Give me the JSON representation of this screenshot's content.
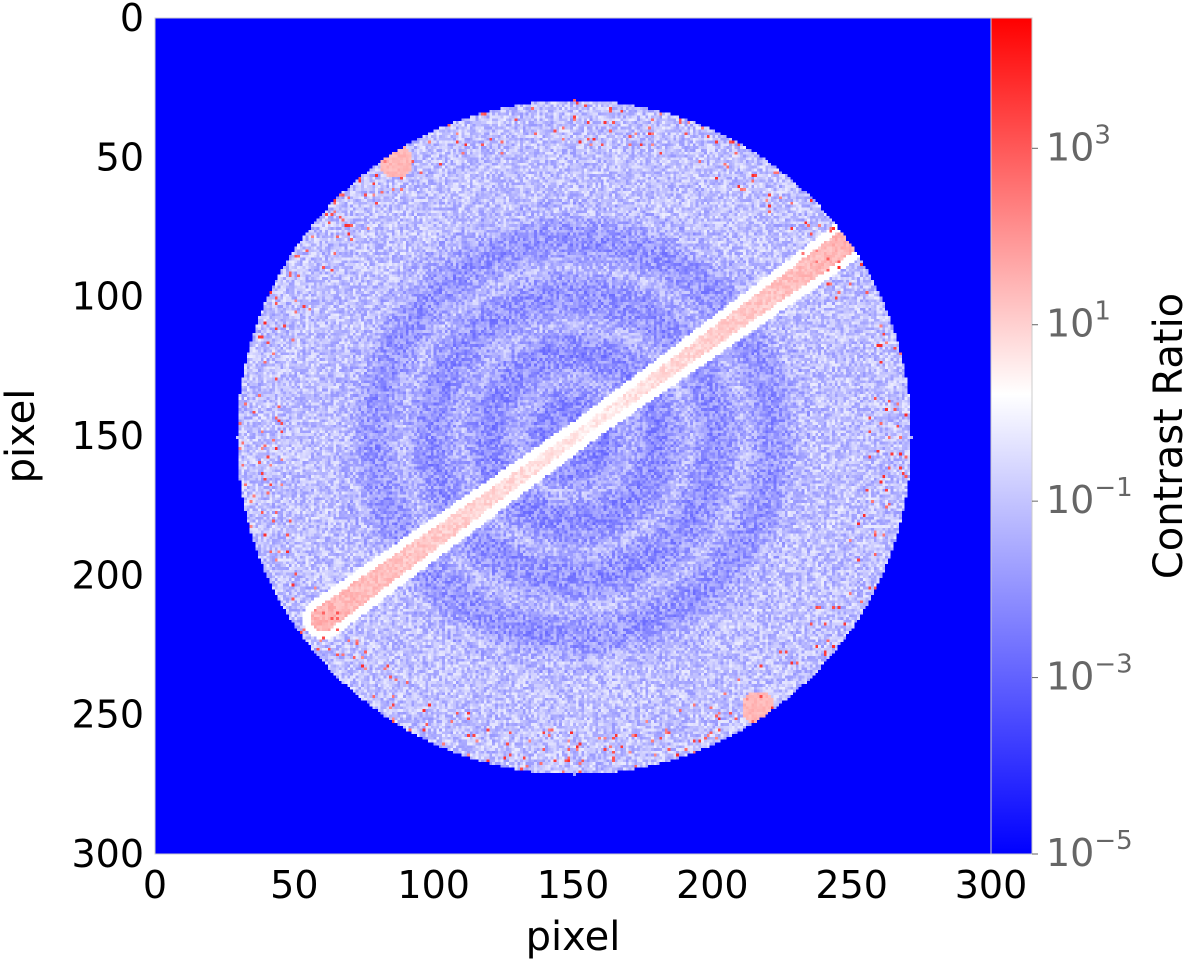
{
  "chart_data": {
    "type": "heatmap",
    "title": "",
    "xlabel": "pixel",
    "ylabel": "pixel",
    "xlim": [
      0,
      300
    ],
    "ylim": [
      300,
      0
    ],
    "xticks": [
      "0",
      "50",
      "100",
      "150",
      "200",
      "250",
      "300"
    ],
    "yticks": [
      "0",
      "50",
      "100",
      "150",
      "200",
      "250",
      "300"
    ],
    "colorbar": {
      "label": "Contrast Ratio",
      "scale": "log",
      "range": [
        1e-05,
        30000
      ],
      "ticks": [
        {
          "value": 1000,
          "base": "10",
          "exp": "3"
        },
        {
          "value": 10,
          "base": "10",
          "exp": "1"
        },
        {
          "value": 0.1,
          "base": "10",
          "exp": "−1"
        },
        {
          "value": 0.001,
          "base": "10",
          "exp": "−3"
        },
        {
          "value": 1e-05,
          "base": "10",
          "exp": "−5"
        }
      ],
      "colormap": [
        "#0000ff",
        "#ffffff",
        "#ff0000"
      ]
    },
    "background_value": 1e-05,
    "aperture": {
      "center": [
        150,
        150
      ],
      "radius_pixels": 121
    },
    "features": [
      {
        "name": "diagonal streak",
        "from": [
          60,
          215
        ],
        "to": [
          250,
          78
        ],
        "level": "approximately 1 to 10"
      },
      {
        "name": "upper-left patch",
        "center": [
          86,
          51
        ],
        "level": "approximately 10"
      },
      {
        "name": "lower-right patch",
        "center": [
          216,
          247
        ],
        "level": "approximately 10"
      },
      {
        "name": "dark inner rings",
        "center": [
          150,
          150
        ],
        "level": "approximately 1e-3"
      }
    ]
  }
}
